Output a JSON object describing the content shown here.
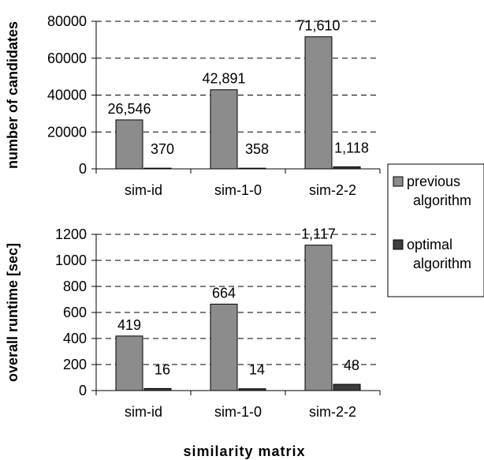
{
  "colors": {
    "previous": "#8c8c8c",
    "optimal": "#3c3c3c",
    "axis": "#000000"
  },
  "xlabel": "similarity matrix",
  "legend": {
    "placement": "right",
    "items": [
      {
        "lines": [
          "previous",
          "algorithm"
        ],
        "color": "#8c8c8c"
      },
      {
        "lines": [
          "optimal",
          "algorithm"
        ],
        "color": "#3c3c3c"
      }
    ]
  },
  "chart_data": [
    {
      "type": "bar",
      "ylabel": "number of candidates",
      "categories": [
        "sim-id",
        "sim-1-0",
        "sim-2-2"
      ],
      "ylim": [
        0,
        80000
      ],
      "yticks": [
        0,
        20000,
        40000,
        60000,
        80000
      ],
      "ytick_labels": [
        "0",
        "20000",
        "40000",
        "60000",
        "80000"
      ],
      "grid": "dashed-horizontal",
      "series": [
        {
          "name": "previous algorithm",
          "values": [
            26546,
            42891,
            71610
          ],
          "labels": [
            "26,546",
            "42,891",
            "71,610"
          ]
        },
        {
          "name": "optimal algorithm",
          "values": [
            370,
            358,
            1118
          ],
          "labels": [
            "370",
            "358",
            "1,118"
          ]
        }
      ]
    },
    {
      "type": "bar",
      "ylabel": "overall runtime [sec]",
      "categories": [
        "sim-id",
        "sim-1-0",
        "sim-2-2"
      ],
      "ylim": [
        0,
        1200
      ],
      "yticks": [
        0,
        200,
        400,
        600,
        800,
        1000,
        1200
      ],
      "ytick_labels": [
        "0",
        "200",
        "400",
        "600",
        "800",
        "1000",
        "1200"
      ],
      "grid": "dashed-horizontal",
      "series": [
        {
          "name": "previous algorithm",
          "values": [
            419,
            664,
            1117
          ],
          "labels": [
            "419",
            "664",
            "1,117"
          ]
        },
        {
          "name": "optimal algorithm",
          "values": [
            16,
            14,
            48
          ],
          "labels": [
            "16",
            "14",
            "48"
          ]
        }
      ]
    }
  ]
}
